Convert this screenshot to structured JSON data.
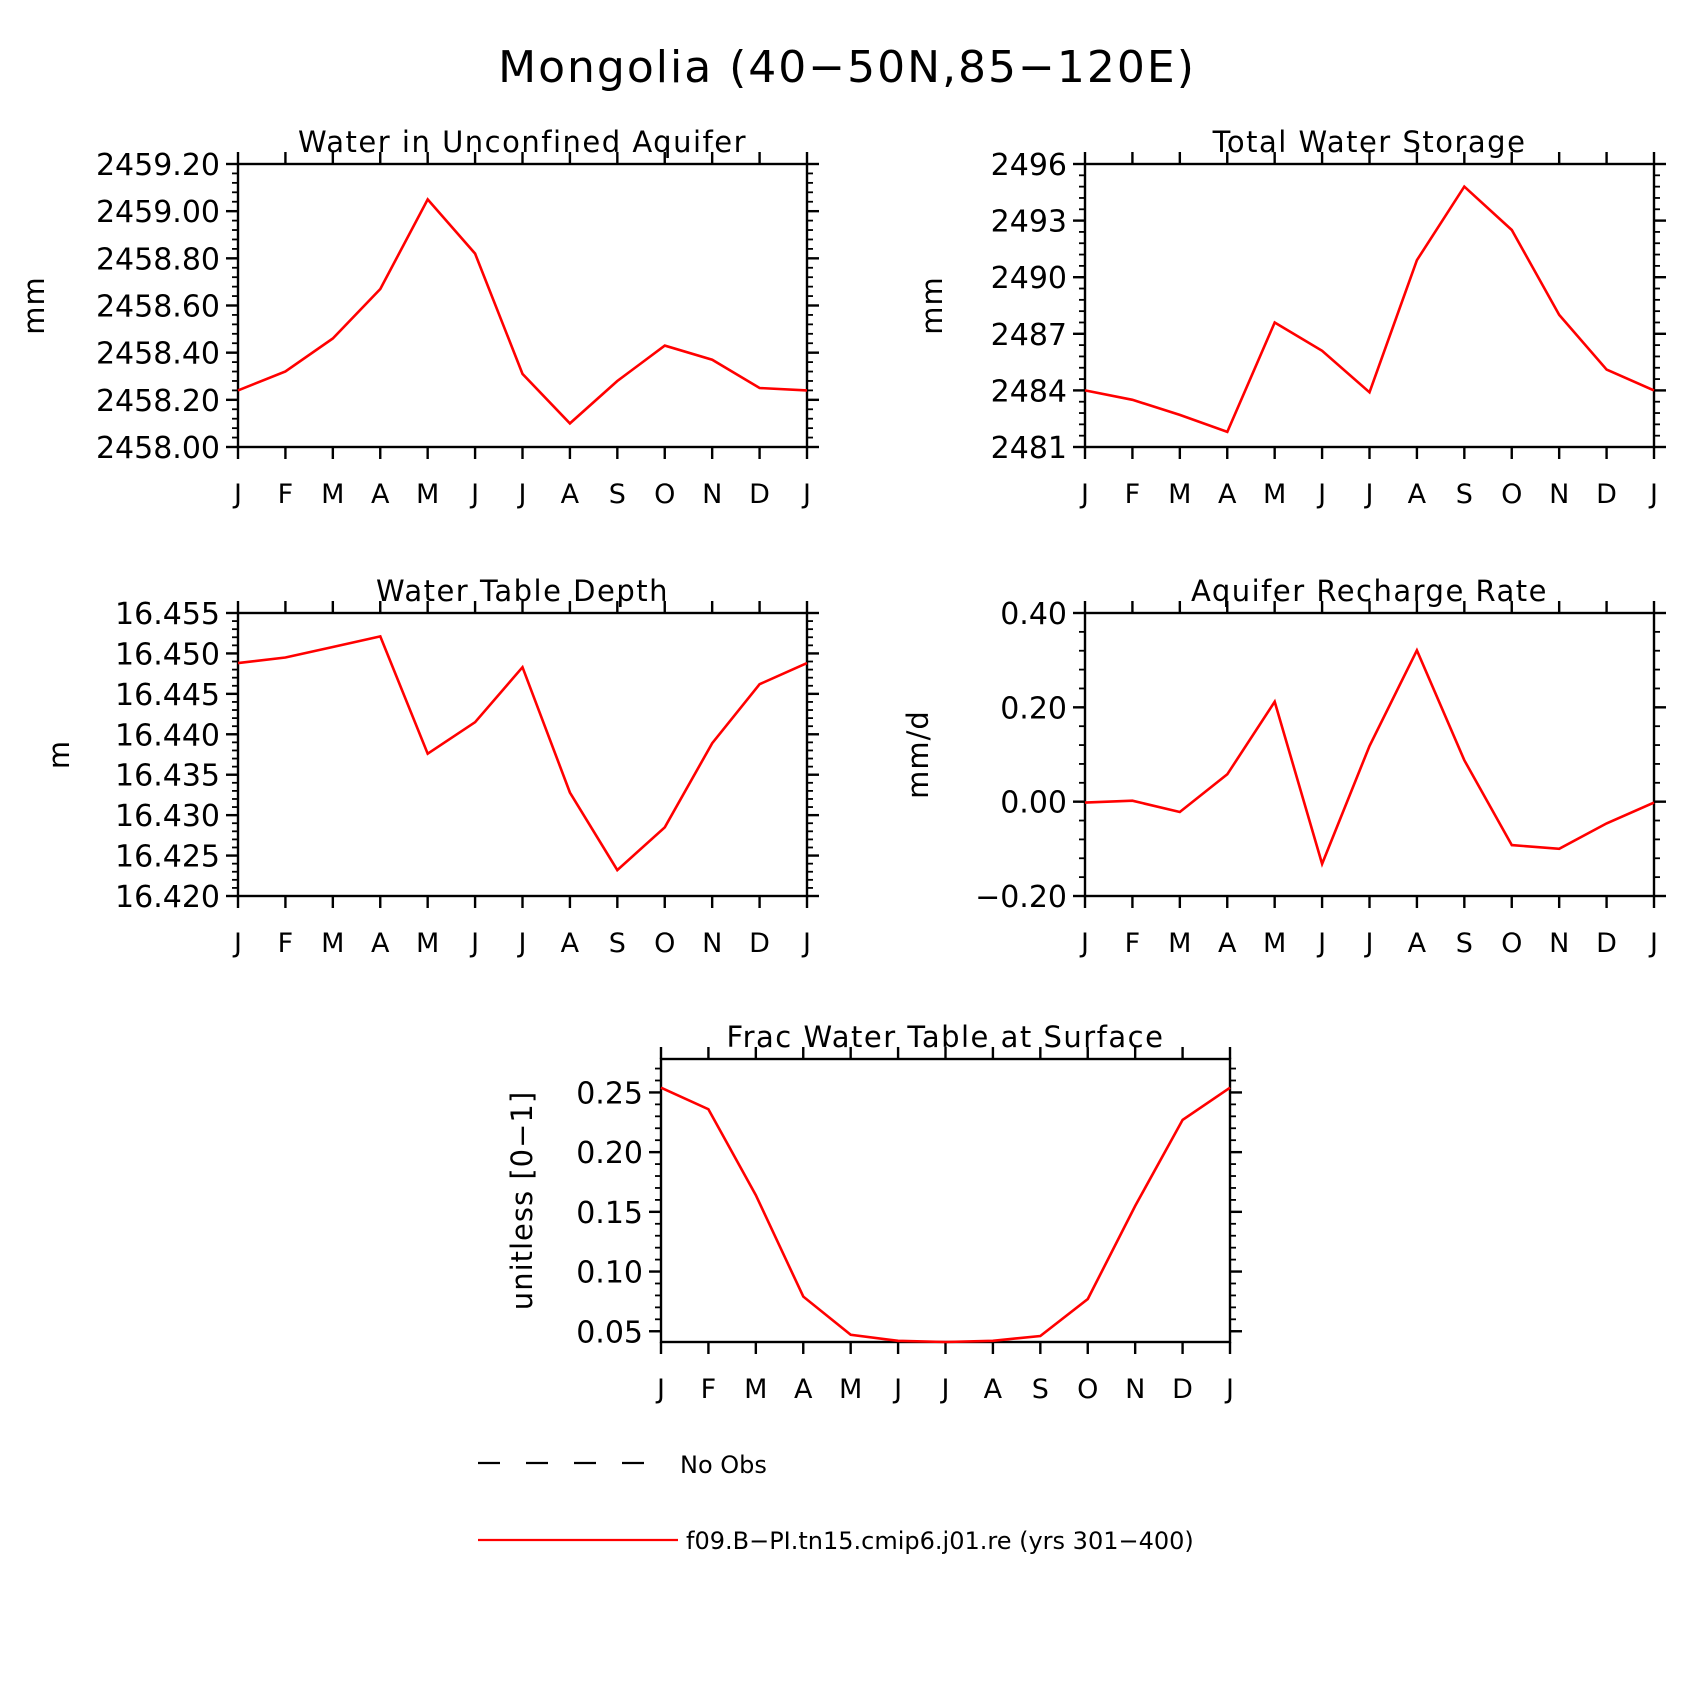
{
  "figure_title": "Mongolia (40−50N,85−120E)",
  "colors": {
    "model_line": "#ff0000",
    "obs_line": "#000000"
  },
  "legend": {
    "placement": "bottom",
    "entries": [
      {
        "label": "No Obs",
        "style": "dashed",
        "color": "#000000"
      },
      {
        "label": "f09.B−PI.tn15.cmip6.j01.re (yrs 301−400)",
        "style": "solid",
        "color": "#ff0000"
      }
    ]
  },
  "chart_data": [
    {
      "type": "line",
      "title": "Water in Unconfined Aquifer",
      "ylabel": "mm",
      "categories": [
        "J",
        "F",
        "M",
        "A",
        "M",
        "J",
        "J",
        "A",
        "S",
        "O",
        "N",
        "D",
        "J"
      ],
      "ylim": [
        2458.0,
        2459.2
      ],
      "yticks": [
        "2459.20",
        "2459.00",
        "2458.80",
        "2458.60",
        "2458.40",
        "2458.20",
        "2458.00"
      ],
      "grid": false,
      "series": [
        {
          "values": [
            2458.24,
            2458.32,
            2458.46,
            2458.67,
            2459.05,
            2458.82,
            2458.31,
            2458.1,
            2458.28,
            2458.43,
            2458.37,
            2458.25,
            2458.24
          ]
        }
      ]
    },
    {
      "type": "line",
      "title": "Total Water Storage",
      "ylabel": "mm",
      "categories": [
        "J",
        "F",
        "M",
        "A",
        "M",
        "J",
        "J",
        "A",
        "S",
        "O",
        "N",
        "D",
        "J"
      ],
      "ylim": [
        2481,
        2496
      ],
      "yticks": [
        "2496",
        "2493",
        "2490",
        "2487",
        "2484",
        "2481"
      ],
      "grid": false,
      "series": [
        {
          "values": [
            2484.0,
            2483.5,
            2482.7,
            2481.8,
            2487.6,
            2486.1,
            2483.9,
            2490.9,
            2494.8,
            2492.5,
            2488.0,
            2485.1,
            2484.0
          ]
        }
      ]
    },
    {
      "type": "line",
      "title": "Water Table Depth",
      "ylabel": "m",
      "categories": [
        "J",
        "F",
        "M",
        "A",
        "M",
        "J",
        "J",
        "A",
        "S",
        "O",
        "N",
        "D",
        "J"
      ],
      "ylim": [
        16.42,
        16.455
      ],
      "yticks": [
        "16.455",
        "16.450",
        "16.445",
        "16.440",
        "16.435",
        "16.430",
        "16.425",
        "16.420"
      ],
      "grid": false,
      "series": [
        {
          "values": [
            16.4488,
            16.4495,
            16.4508,
            16.4521,
            16.4376,
            16.4415,
            16.4483,
            16.4328,
            16.4232,
            16.4285,
            16.4389,
            16.4462,
            16.4488
          ]
        }
      ]
    },
    {
      "type": "line",
      "title": "Aquifer Recharge Rate",
      "ylabel": "mm/d",
      "categories": [
        "J",
        "F",
        "M",
        "A",
        "M",
        "J",
        "J",
        "A",
        "S",
        "O",
        "N",
        "D",
        "J"
      ],
      "ylim": [
        -0.2,
        0.4
      ],
      "yticks": [
        "0.40",
        "0.20",
        "0.00",
        "−0.20"
      ],
      "grid": false,
      "series": [
        {
          "values": [
            -0.002,
            0.002,
            -0.022,
            0.058,
            0.212,
            -0.132,
            0.118,
            0.321,
            0.088,
            -0.092,
            -0.1,
            -0.046,
            -0.002
          ]
        }
      ]
    },
    {
      "type": "line",
      "title": "Frac Water Table at Surface",
      "ylabel": "unitless [0−1]",
      "categories": [
        "J",
        "F",
        "M",
        "A",
        "M",
        "J",
        "J",
        "A",
        "S",
        "O",
        "N",
        "D",
        "J"
      ],
      "ylim": [
        0.041,
        0.278
      ],
      "yticks": [
        "0.25",
        "0.20",
        "0.15",
        "0.10",
        "0.05"
      ],
      "grid": false,
      "series": [
        {
          "values": [
            0.254,
            0.236,
            0.164,
            0.079,
            0.047,
            0.042,
            0.041,
            0.042,
            0.046,
            0.077,
            0.155,
            0.227,
            0.254
          ]
        }
      ]
    }
  ]
}
